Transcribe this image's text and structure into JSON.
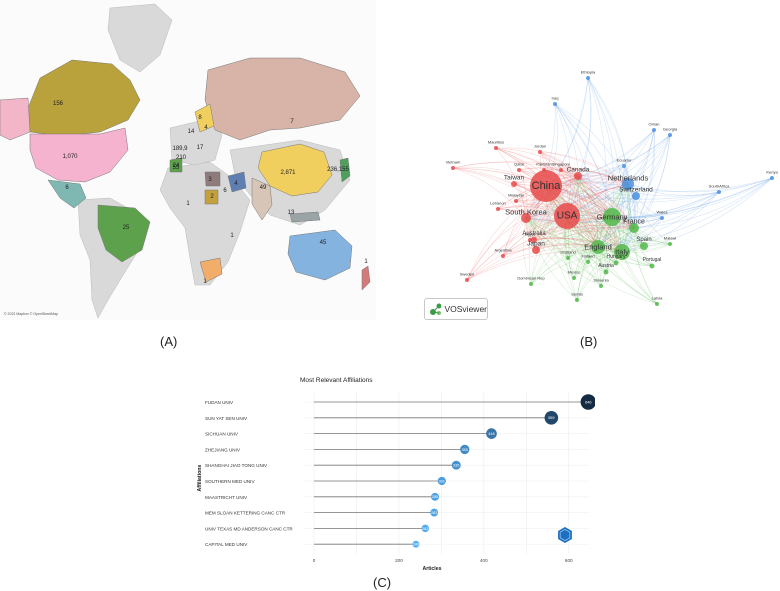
{
  "panel_labels": {
    "a": "(A)",
    "b": "(B)",
    "c": "(C)"
  },
  "map": {
    "credit": "© 2022 Mapbox © OpenStreetMap",
    "labels": [
      {
        "id": "canada",
        "text": "156"
      },
      {
        "id": "usa",
        "text": "1,070"
      },
      {
        "id": "mexico",
        "text": "6"
      },
      {
        "id": "brazil",
        "text": "25"
      },
      {
        "id": "russia",
        "text": "7"
      },
      {
        "id": "china",
        "text": "2,871"
      },
      {
        "id": "japan",
        "text": "236,155"
      },
      {
        "id": "india",
        "text": "49"
      },
      {
        "id": "australia",
        "text": "45"
      },
      {
        "id": "southafrica",
        "text": "1"
      },
      {
        "id": "tanzania",
        "text": "1"
      },
      {
        "id": "norway",
        "text": "8"
      },
      {
        "id": "finland",
        "text": "4"
      },
      {
        "id": "ukgroup",
        "text": "189,9"
      },
      {
        "id": "italy",
        "text": "210"
      },
      {
        "id": "spain",
        "text": "55"
      },
      {
        "id": "germany",
        "text": "17"
      },
      {
        "id": "egypt",
        "text": "3"
      },
      {
        "id": "nigeria",
        "text": "1"
      },
      {
        "id": "iran",
        "text": "4"
      },
      {
        "id": "saudi",
        "text": "6"
      },
      {
        "id": "indonesia",
        "text": "13"
      },
      {
        "id": "nz",
        "text": "1"
      },
      {
        "id": "sudan",
        "text": "2"
      },
      {
        "id": "morocco",
        "text": "24"
      },
      {
        "id": "sweden",
        "text": "14"
      }
    ]
  },
  "network": {
    "badge": "VOSviewer",
    "nodes": [
      {
        "id": "china",
        "label": "China",
        "cluster": "red"
      },
      {
        "id": "usa",
        "label": "USA",
        "cluster": "red"
      },
      {
        "id": "southkorea",
        "label": "South Korea",
        "cluster": "red"
      },
      {
        "id": "taiwan",
        "label": "Taiwan",
        "cluster": "red"
      },
      {
        "id": "canada",
        "label": "Canada",
        "cluster": "red"
      },
      {
        "id": "japan",
        "label": "Japan",
        "cluster": "red"
      },
      {
        "id": "australia",
        "label": "Australia",
        "cluster": "red"
      },
      {
        "id": "netherlands",
        "label": "Netherlands",
        "cluster": "blue"
      },
      {
        "id": "switzerland",
        "label": "Switzerland",
        "cluster": "blue"
      },
      {
        "id": "germany",
        "label": "Germany",
        "cluster": "green"
      },
      {
        "id": "france",
        "label": "France",
        "cluster": "green"
      },
      {
        "id": "england",
        "label": "England",
        "cluster": "green"
      },
      {
        "id": "italy",
        "label": "Italy",
        "cluster": "green"
      },
      {
        "id": "spain",
        "label": "Spain",
        "cluster": "green"
      },
      {
        "id": "hungary",
        "label": "Hungary",
        "cluster": "green"
      },
      {
        "id": "austria",
        "label": "Austria",
        "cluster": "green"
      },
      {
        "id": "portugal",
        "label": "Portugal",
        "cluster": "green"
      },
      {
        "id": "ethiopia",
        "label": "Ethiopia",
        "cluster": "blue"
      },
      {
        "id": "iraq",
        "label": "Iraq",
        "cluster": "blue"
      },
      {
        "id": "oman",
        "label": "Oman",
        "cluster": "blue"
      },
      {
        "id": "georgia",
        "label": "Georgia",
        "cluster": "blue"
      },
      {
        "id": "kenya",
        "label": "Kenya",
        "cluster": "blue"
      },
      {
        "id": "southafrica",
        "label": "SouthAfrica",
        "cluster": "blue"
      },
      {
        "id": "wales",
        "label": "Wales",
        "cluster": "blue"
      },
      {
        "id": "ecuador",
        "label": "Ecuador",
        "cluster": "blue"
      },
      {
        "id": "malawi",
        "label": "Malawi",
        "cluster": "green"
      },
      {
        "id": "latvia",
        "label": "Latvia",
        "cluster": "green"
      },
      {
        "id": "serbia",
        "label": "Serbia",
        "cluster": "green"
      },
      {
        "id": "slovenia",
        "label": "Slovenia",
        "cluster": "green"
      },
      {
        "id": "dominican",
        "label": "Dominican Rep",
        "cluster": "green"
      },
      {
        "id": "finland",
        "label": "Finland",
        "cluster": "green"
      },
      {
        "id": "scotland",
        "label": "Scotland",
        "cluster": "green"
      },
      {
        "id": "mexico",
        "label": "Mexico",
        "cluster": "green"
      },
      {
        "id": "argentina",
        "label": "Argentina",
        "cluster": "red"
      },
      {
        "id": "sweden",
        "label": "Sweden",
        "cluster": "red"
      },
      {
        "id": "egypt",
        "label": "Egypt",
        "cluster": "red"
      },
      {
        "id": "lebanon",
        "label": "Lebanon",
        "cluster": "red"
      },
      {
        "id": "malaysia",
        "label": "Malaysia",
        "cluster": "red"
      },
      {
        "id": "vietnam",
        "label": "Vietnam",
        "cluster": "red"
      },
      {
        "id": "mauritius",
        "label": "Mauritius",
        "cluster": "red"
      },
      {
        "id": "jordan",
        "label": "Jordan",
        "cluster": "red"
      },
      {
        "id": "qatar",
        "label": "Qatar",
        "cluster": "red"
      },
      {
        "id": "pakistan",
        "label": "Pakistan",
        "cluster": "red"
      },
      {
        "id": "singapore",
        "label": "Singapore",
        "cluster": "red"
      }
    ]
  },
  "chart_data": {
    "type": "bar",
    "title": "Most Relevant Affiliations",
    "xlabel": "Articles",
    "ylabel": "Affiliations",
    "xlim": [
      0,
      650
    ],
    "xticks": [
      "0",
      "200",
      "400",
      "600"
    ],
    "grid": true,
    "categories": [
      "FUDAN UNIV",
      "SUN YAT SEN UNIV",
      "SICHUAN UNIV",
      "ZHEJIANG UNIV",
      "SHANGHAI JIAO TONG UNIV",
      "SOUTHERN MED UNIV",
      "MAASTRICHT UNIV",
      "MEM SLOAN KETTERING CANC CTR",
      "UNIV TEXAS MD ANDERSON CANC CTR",
      "CAPITAL MED UNIV"
    ],
    "values": [
      646,
      559,
      418,
      355,
      335,
      301,
      285,
      283,
      262,
      240
    ],
    "point_labels": [
      "646",
      "559",
      "418",
      "355",
      "335",
      "301",
      "285",
      "283",
      "262",
      "240"
    ],
    "colors": {
      "dark": "#132b43",
      "light": "#56b1f7"
    }
  }
}
